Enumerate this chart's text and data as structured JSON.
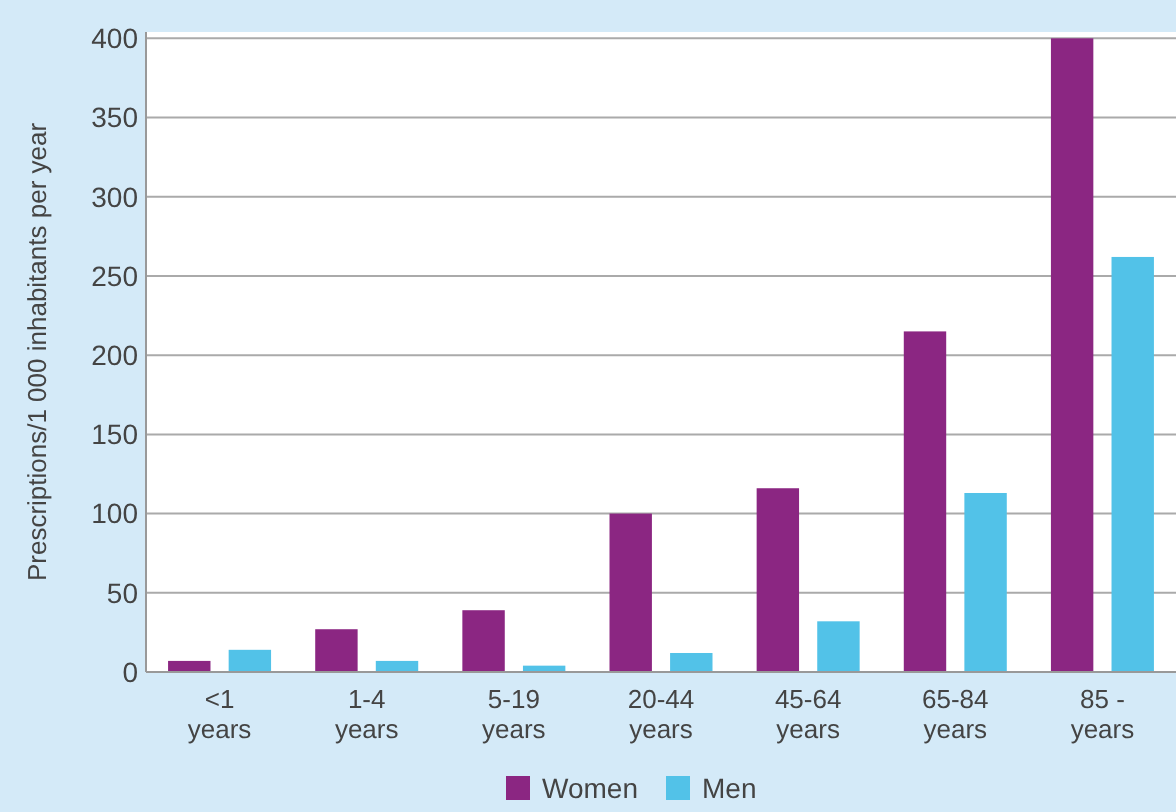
{
  "chart_data": {
    "type": "bar",
    "ylabel": "Prescriptions/1 000 inhabitants per year",
    "categories": [
      "<1 years",
      "1-4 years",
      "5-19 years",
      "20-44 years",
      "45-64 years",
      "65-84 years",
      "85 - years"
    ],
    "series": [
      {
        "name": "Women",
        "color": "#8b2682",
        "values": [
          7,
          27,
          39,
          100,
          116,
          215,
          400
        ]
      },
      {
        "name": "Men",
        "color": "#52c2e8",
        "values": [
          14,
          7,
          4,
          12,
          32,
          113,
          262
        ]
      }
    ],
    "ylim": [
      0,
      404
    ],
    "yticks": [
      0,
      50,
      100,
      150,
      200,
      250,
      300,
      350,
      400
    ],
    "grid": "y",
    "legend": "bottom"
  }
}
